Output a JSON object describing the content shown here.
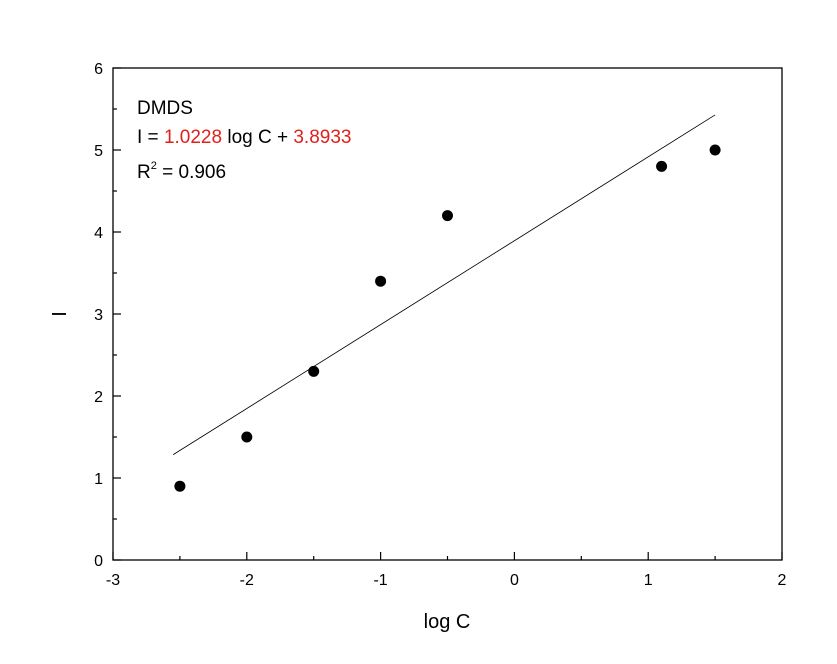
{
  "chart_data": {
    "type": "scatter",
    "xlabel": "log C",
    "ylabel": "I",
    "annotation": {
      "label": "DMDS",
      "equation": [
        "I = ",
        "1.0228",
        " log C + ",
        "3.8933"
      ],
      "r2": [
        "R",
        "2",
        " = 0.906"
      ],
      "highlight_color": "#e0201b"
    },
    "xlim": [
      -3,
      2
    ],
    "xticks": [
      -3,
      -2,
      -1,
      0,
      1,
      2
    ],
    "xminorticks": [
      -2.5,
      -1.5,
      -0.5,
      0.5,
      1.5
    ],
    "ylim": [
      0,
      6
    ],
    "yticks": [
      0,
      1,
      2,
      3,
      4,
      5,
      6
    ],
    "yminorticks": [
      0.5,
      1.5,
      2.5,
      3.5,
      4.5,
      5.5
    ],
    "series": [
      {
        "name": "DMDS",
        "color": "#000000",
        "x": [
          -2.5,
          -2,
          -1.5,
          -1,
          -0.5,
          1.1,
          1.5
        ],
        "values": [
          0.9,
          1.5,
          2.3,
          3.4,
          4.2,
          4.8,
          5.0
        ]
      }
    ],
    "fit": {
      "color": "#000000",
      "x": [
        -2.55,
        1.5
      ],
      "values": [
        1.285,
        5.428
      ]
    }
  }
}
